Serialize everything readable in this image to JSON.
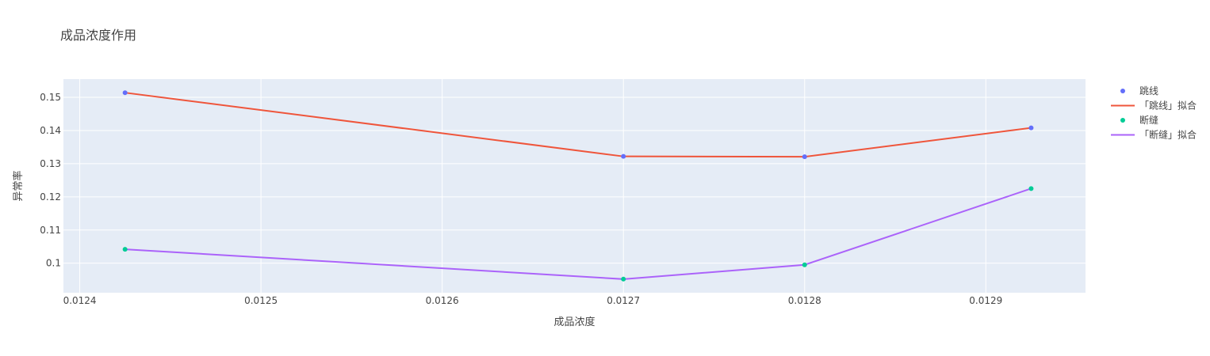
{
  "chart_data": {
    "type": "line",
    "title": "成品浓度作用",
    "xlabel": "成品浓度",
    "ylabel": "异常率",
    "xlim": [
      0.012391,
      0.012955
    ],
    "ylim": [
      0.0911,
      0.1555
    ],
    "xticks": [
      0.0124,
      0.0125,
      0.0126,
      0.0127,
      0.0128,
      0.0129
    ],
    "xtick_labels": [
      "0.0124",
      "0.0125",
      "0.0126",
      "0.0127",
      "0.0128",
      "0.0129"
    ],
    "yticks": [
      0.1,
      0.11,
      0.12,
      0.13,
      0.14,
      0.15
    ],
    "ytick_labels": [
      "0.1",
      "0.11",
      "0.12",
      "0.13",
      "0.14",
      "0.15"
    ],
    "grid": true,
    "legend_position": "right",
    "series": [
      {
        "name": "跳线",
        "mode": "markers",
        "color": "#636efa",
        "x": [
          0.012425,
          0.0127,
          0.0128,
          0.012925
        ],
        "y": [
          0.1514,
          0.1322,
          0.1321,
          0.1408
        ]
      },
      {
        "name": "「跳线」拟合",
        "mode": "lines",
        "color": "#ef553b",
        "x": [
          0.012425,
          0.0127,
          0.0128,
          0.012925
        ],
        "y": [
          0.1514,
          0.1322,
          0.1321,
          0.1408
        ]
      },
      {
        "name": "断缝",
        "mode": "markers",
        "color": "#00cc96",
        "x": [
          0.012425,
          0.0127,
          0.0128,
          0.012925
        ],
        "y": [
          0.1042,
          0.0952,
          0.0995,
          0.1225
        ]
      },
      {
        "name": "「断缝」拟合",
        "mode": "lines",
        "color": "#ab63fa",
        "x": [
          0.012425,
          0.0127,
          0.0128,
          0.012925
        ],
        "y": [
          0.1042,
          0.0952,
          0.0995,
          0.1225
        ]
      }
    ]
  },
  "style": {
    "plot_bg": "#e5ecf6",
    "grid_color": "#ffffff",
    "text_color": "#444444"
  }
}
